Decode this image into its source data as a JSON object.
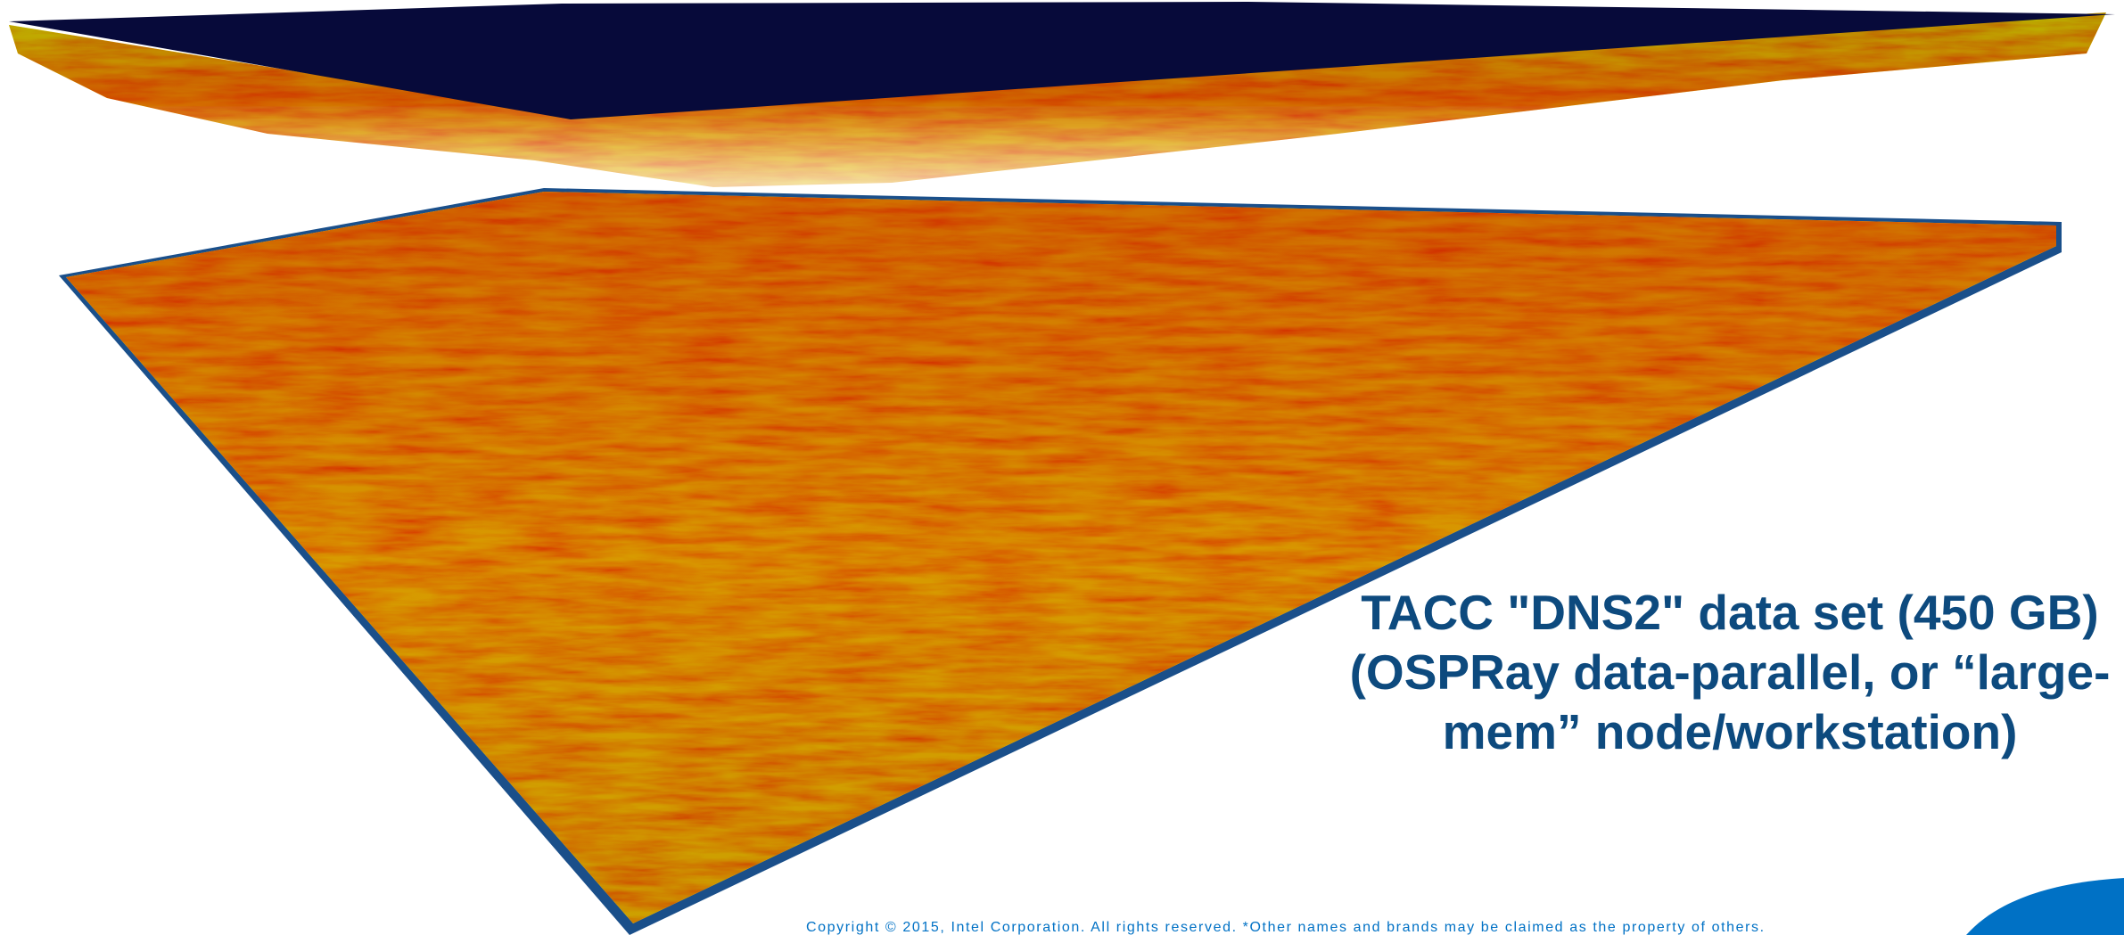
{
  "caption": {
    "lines": [
      "TACC \"DNS2\" data set (450 GB)",
      "(OSPRay data-parallel, or “large-",
      "mem” node/workstation)"
    ]
  },
  "footer": {
    "copyright": "Copyright © 2015, Intel Corporation. All rights reserved. *Other names and brands may be claimed as the property of others."
  }
}
